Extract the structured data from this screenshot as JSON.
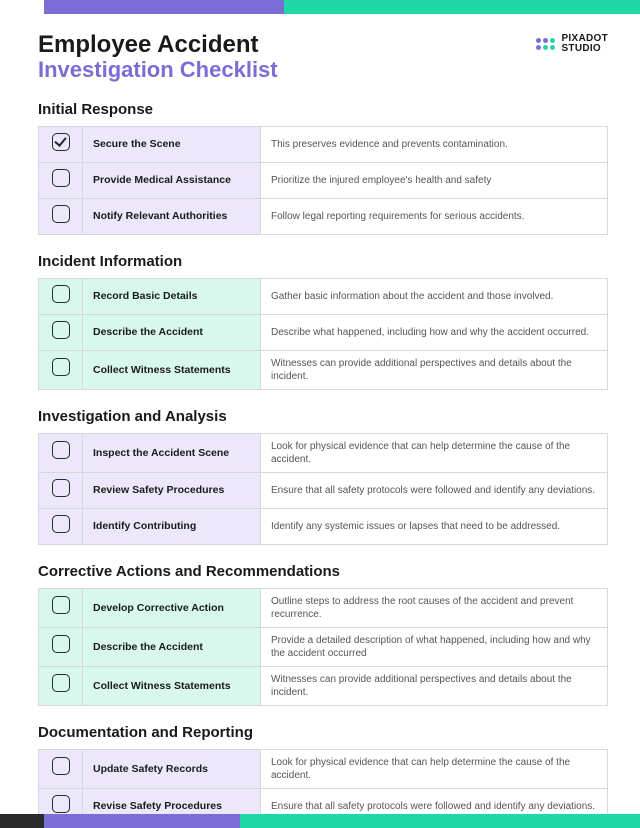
{
  "colors": {
    "purple": "#7b6dd6",
    "teal": "#1fd8a5",
    "dark": "#2a2a2a",
    "tint_purple": "#ece7fb",
    "tint_teal": "#d8f8ee",
    "border": "#d8d8d8",
    "text": "#1a1a1a",
    "text_muted": "#555555"
  },
  "logo": {
    "name_line1": "PIXADOT",
    "name_line2": "STUDIO",
    "dot_colors": [
      "#7b6dd6",
      "#7b6dd6",
      "#1fd8a5",
      "#7b6dd6",
      "#1fd8a5",
      "#1fd8a5"
    ]
  },
  "title": {
    "line1": "Employee Accident",
    "line2": "Investigation Checklist"
  },
  "sections": [
    {
      "title": "Initial Response",
      "tint": "purple",
      "items": [
        {
          "checked": true,
          "label": "Secure the Scene",
          "desc": "This preserves evidence and prevents contamination."
        },
        {
          "checked": false,
          "label": "Provide Medical Assistance",
          "desc": "Prioritize the injured employee's health and safety"
        },
        {
          "checked": false,
          "label": "Notify Relevant Authorities",
          "desc": "Follow legal reporting requirements for serious accidents."
        }
      ]
    },
    {
      "title": "Incident Information",
      "tint": "teal",
      "items": [
        {
          "checked": false,
          "label": "Record Basic Details",
          "desc": "Gather basic information about the accident and those involved."
        },
        {
          "checked": false,
          "label": "Describe the Accident",
          "desc": "Describe what happened, including how and why the accident occurred."
        },
        {
          "checked": false,
          "label": "Collect Witness Statements",
          "desc": "Witnesses can provide additional perspectives and details about the incident."
        }
      ]
    },
    {
      "title": "Investigation and Analysis",
      "tint": "purple",
      "items": [
        {
          "checked": false,
          "label": "Inspect the Accident Scene",
          "desc": "Look for physical evidence that can help determine the cause of  the accident."
        },
        {
          "checked": false,
          "label": "Review Safety Procedures",
          "desc": "Ensure that all safety protocols were followed and identify any deviations."
        },
        {
          "checked": false,
          "label": "Identify Contributing",
          "desc": "Identify any systemic issues or lapses that need to be addressed."
        }
      ]
    },
    {
      "title": "Corrective Actions and Recommendations",
      "tint": "teal",
      "items": [
        {
          "checked": false,
          "label": "Develop Corrective Action",
          "desc": "Outline steps to address the root causes of the accident and prevent recurrence."
        },
        {
          "checked": false,
          "label": "Describe the Accident",
          "desc": "Provide a detailed description of what happened, including how and why the accident occurred"
        },
        {
          "checked": false,
          "label": "Collect Witness Statements",
          "desc": "Witnesses can provide additional perspectives and details about the incident."
        }
      ]
    },
    {
      "title": "Documentation and Reporting",
      "tint": "purple",
      "items": [
        {
          "checked": false,
          "label": "Update Safety Records",
          "desc": "Look for physical evidence that can help determine the cause of  the accident."
        },
        {
          "checked": false,
          "label": "Revise Safety Procedures",
          "desc": "Ensure that all safety protocols were followed and identify any deviations."
        }
      ]
    }
  ]
}
